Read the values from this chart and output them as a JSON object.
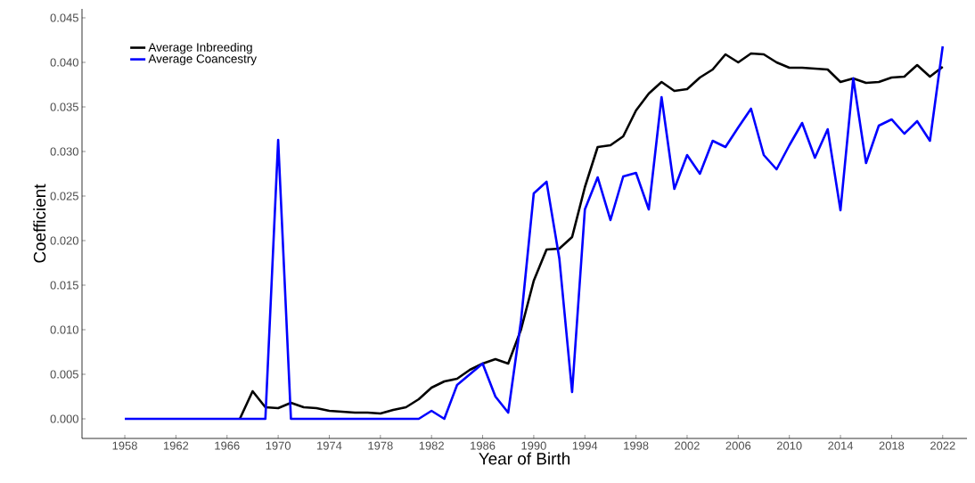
{
  "chart_data": {
    "type": "line",
    "xlabel": "Year of Birth",
    "ylabel": "Coefficient",
    "x": [
      1958,
      1959,
      1960,
      1961,
      1962,
      1963,
      1964,
      1965,
      1966,
      1967,
      1968,
      1969,
      1970,
      1971,
      1972,
      1973,
      1974,
      1975,
      1976,
      1977,
      1978,
      1979,
      1980,
      1981,
      1982,
      1983,
      1984,
      1985,
      1986,
      1987,
      1988,
      1989,
      1990,
      1991,
      1992,
      1993,
      1994,
      1995,
      1996,
      1997,
      1998,
      1999,
      2000,
      2001,
      2002,
      2003,
      2004,
      2005,
      2006,
      2007,
      2008,
      2009,
      2010,
      2011,
      2012,
      2013,
      2014,
      2015,
      2016,
      2017,
      2018,
      2019,
      2020,
      2021,
      2022
    ],
    "series": [
      {
        "name": "Average Inbreeding",
        "color": "#000000",
        "values": [
          null,
          null,
          null,
          null,
          null,
          null,
          null,
          null,
          null,
          0,
          0.0031,
          0.0013,
          0.0012,
          0.0018,
          0.0013,
          0.0012,
          0.0009,
          0.0008,
          0.0007,
          0.0007,
          0.0006,
          0.001,
          0.0013,
          0.0022,
          0.0035,
          0.0042,
          0.0045,
          0.0055,
          0.0062,
          0.0067,
          0.0062,
          0.01,
          0.0155,
          0.019,
          0.0191,
          0.0204,
          0.026,
          0.0305,
          0.0307,
          0.0317,
          0.0346,
          0.0365,
          0.0378,
          0.0368,
          0.037,
          0.0383,
          0.0392,
          0.0409,
          0.04,
          0.041,
          0.0409,
          0.04,
          0.0394,
          0.0394,
          0.0393,
          0.0392,
          0.0378,
          0.0382,
          0.0377,
          0.0378,
          0.0383,
          0.0384,
          0.0397,
          0.0384,
          0.0395
        ]
      },
      {
        "name": "Average Coancestry",
        "color": "#0000ff",
        "values": [
          0,
          0,
          0,
          0,
          0,
          0,
          0,
          0,
          0,
          0,
          0,
          0,
          0.0313,
          0,
          0,
          0,
          0,
          0,
          0,
          0,
          0,
          0,
          0,
          0,
          0.0009,
          0,
          0.0038,
          0.005,
          0.0062,
          0.0025,
          0.0007,
          0.011,
          0.0253,
          0.0266,
          0.018,
          0.003,
          0.0235,
          0.0271,
          0.0223,
          0.0272,
          0.0276,
          0.0235,
          0.0361,
          0.0258,
          0.0296,
          0.0275,
          0.0312,
          0.0305,
          0.0327,
          0.0348,
          0.0296,
          0.028,
          0.0307,
          0.0332,
          0.0293,
          0.0325,
          0.0234,
          0.0382,
          0.0287,
          0.0329,
          0.0336,
          0.032,
          0.0334,
          0.0312,
          0.0418
        ]
      }
    ],
    "xlim": [
      1954.65,
      2023.9
    ],
    "ylim": [
      -0.0022,
      0.046
    ],
    "xticks": [
      1958,
      1962,
      1966,
      1970,
      1974,
      1978,
      1982,
      1986,
      1990,
      1994,
      1998,
      2002,
      2006,
      2010,
      2014,
      2018,
      2022
    ],
    "yticks": [
      {
        "value": 0,
        "label": "0.000"
      },
      {
        "value": 0.005,
        "label": "0.005"
      },
      {
        "value": 0.01,
        "label": "0.010"
      },
      {
        "value": 0.015,
        "label": "0.015"
      },
      {
        "value": 0.02,
        "label": "0.020"
      },
      {
        "value": 0.025,
        "label": "0.025"
      },
      {
        "value": 0.03,
        "label": "0.030"
      },
      {
        "value": 0.035,
        "label": "0.035"
      },
      {
        "value": 0.04,
        "label": "0.040"
      },
      {
        "value": 0.045,
        "label": "0.045"
      }
    ],
    "grid": false,
    "legend": "top left",
    "marker": "none",
    "line_style": "solid"
  }
}
